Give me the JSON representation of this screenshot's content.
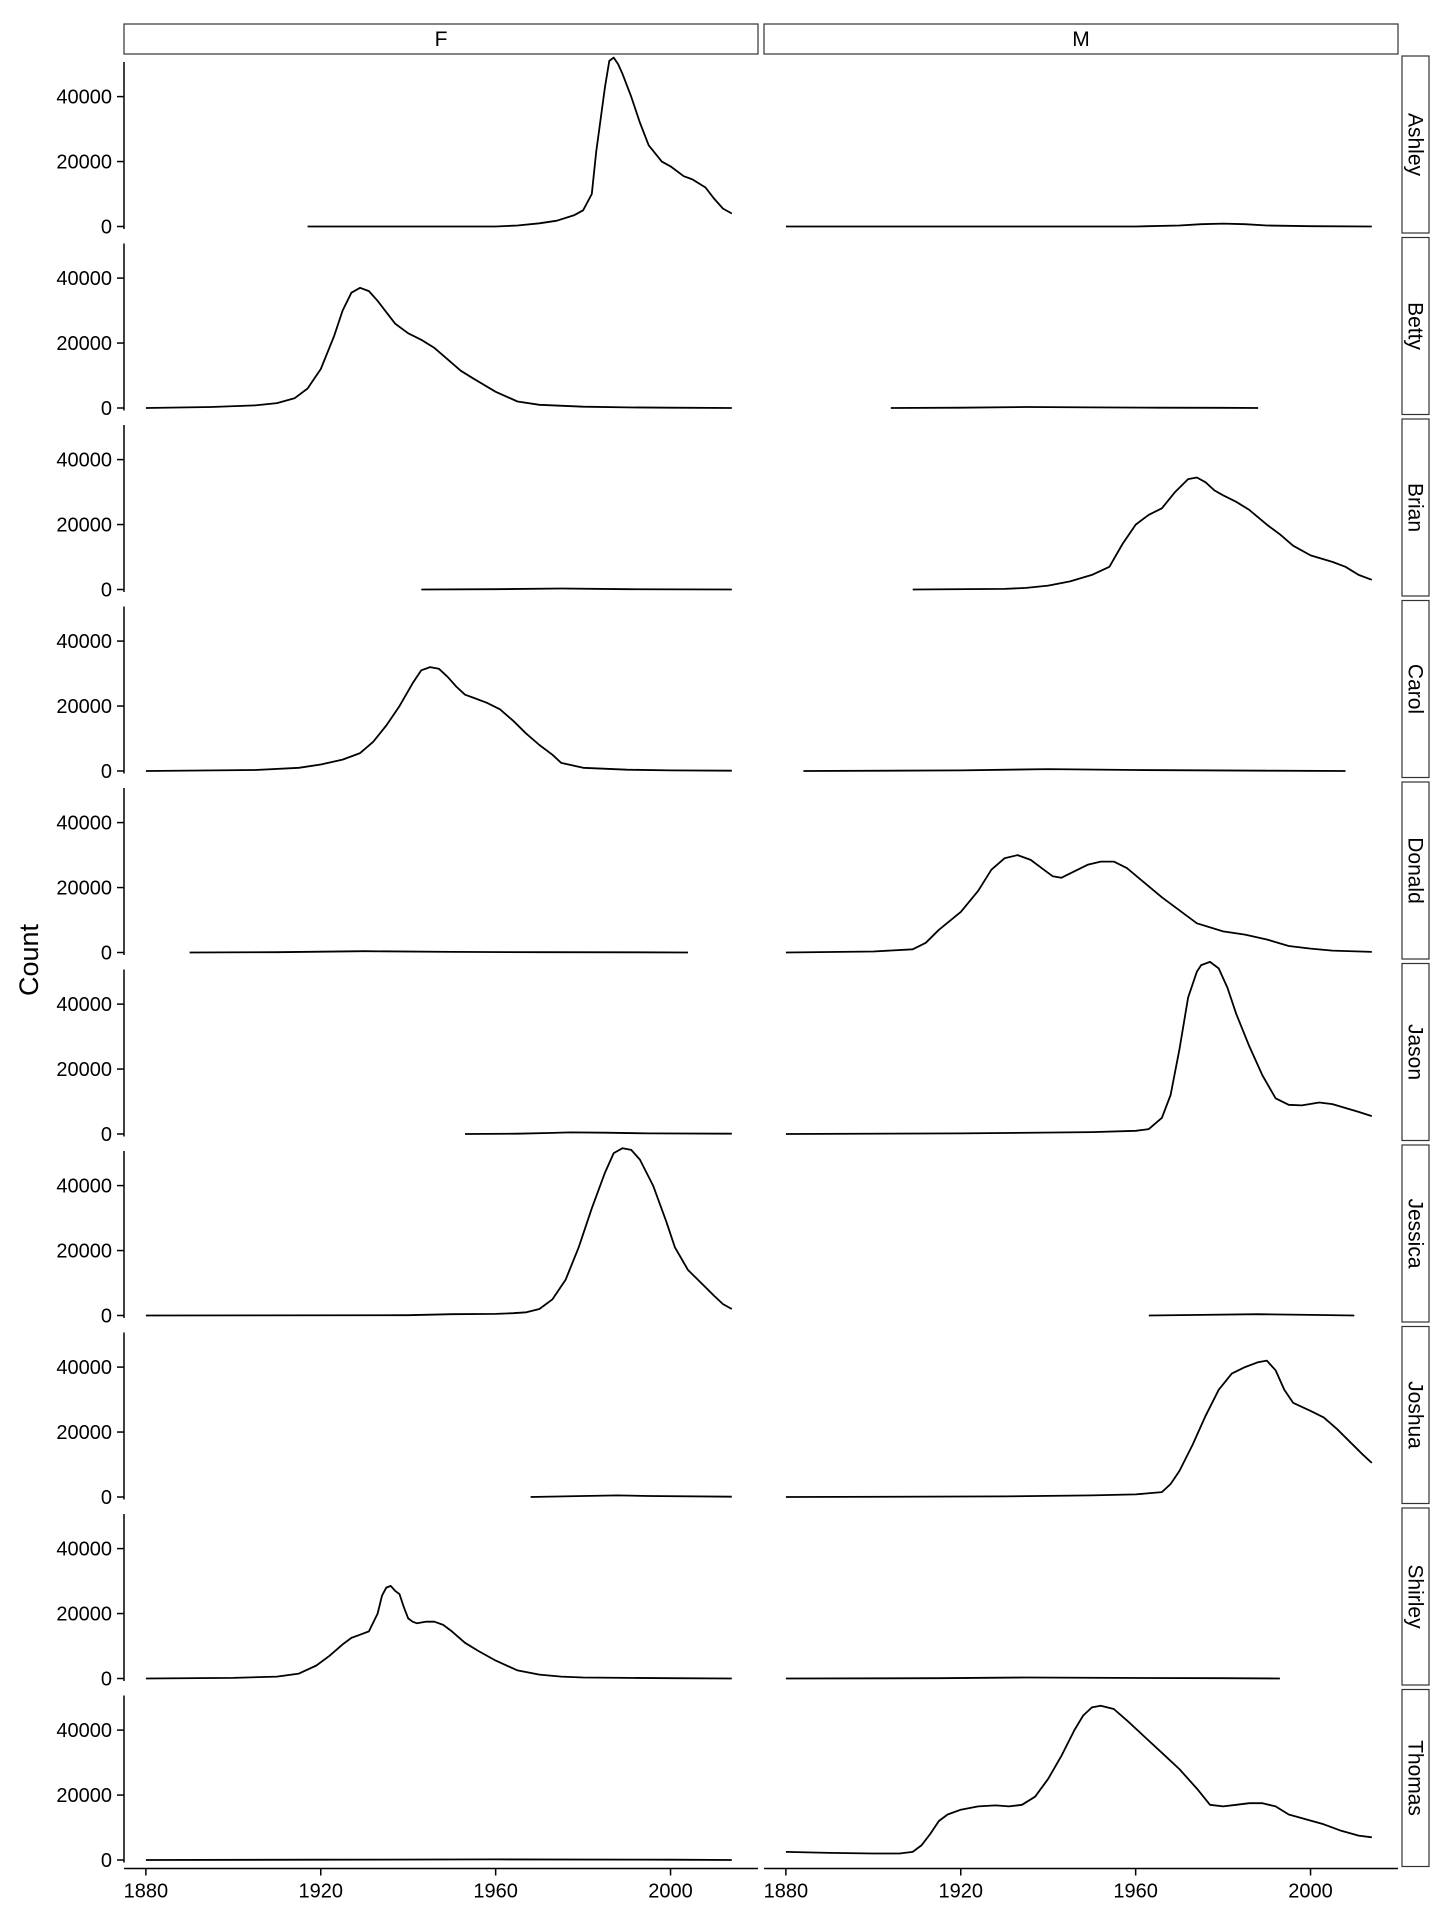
{
  "chart_data": {
    "type": "line",
    "ylabel": "Count",
    "xlabel": "",
    "xlim": [
      1875,
      2020
    ],
    "ylim": [
      -2000,
      52500
    ],
    "x_ticks": [
      1880,
      1920,
      1960,
      2000
    ],
    "y_ticks": [
      0,
      20000,
      40000
    ],
    "grid": false,
    "colors": {
      "line": "#000000",
      "strip_fill": "#ffffff",
      "strip_border": "#333333"
    },
    "col_facets": [
      "F",
      "M"
    ],
    "row_facets": [
      "Ashley",
      "Betty",
      "Brian",
      "Carol",
      "Donald",
      "Jason",
      "Jessica",
      "Joshua",
      "Shirley",
      "Thomas"
    ],
    "panels": [
      {
        "name": "Ashley",
        "sex": "F",
        "x": [
          1917,
          1960,
          1965,
          1970,
          1974,
          1978,
          1980,
          1982,
          1983,
          1985,
          1986,
          1987,
          1988,
          1989,
          1991,
          1993,
          1995,
          1998,
          2000,
          2003,
          2005,
          2008,
          2010,
          2012,
          2014
        ],
        "y": [
          0,
          0,
          300,
          1000,
          1800,
          3500,
          5000,
          10000,
          23000,
          43000,
          51000,
          52000,
          50000,
          47000,
          40000,
          32000,
          25000,
          20000,
          18500,
          15500,
          14500,
          12000,
          8500,
          5500,
          4000
        ]
      },
      {
        "name": "Ashley",
        "sex": "M",
        "x": [
          1880,
          1960,
          1970,
          1975,
          1980,
          1985,
          1990,
          2000,
          2014
        ],
        "y": [
          0,
          0,
          300,
          700,
          900,
          700,
          300,
          100,
          0
        ]
      },
      {
        "name": "Betty",
        "sex": "F",
        "x": [
          1880,
          1895,
          1905,
          1910,
          1914,
          1917,
          1920,
          1923,
          1925,
          1927,
          1929,
          1931,
          1933,
          1935,
          1937,
          1940,
          1943,
          1946,
          1949,
          1952,
          1955,
          1960,
          1965,
          1970,
          1980,
          1990,
          2000,
          2014
        ],
        "y": [
          0,
          300,
          800,
          1500,
          3000,
          6000,
          12000,
          22000,
          30000,
          35500,
          37000,
          36000,
          33000,
          29500,
          26000,
          23000,
          21000,
          18500,
          15000,
          11500,
          9000,
          5000,
          2000,
          1000,
          400,
          200,
          100,
          0
        ]
      },
      {
        "name": "Betty",
        "sex": "M",
        "x": [
          1904,
          1920,
          1935,
          1950,
          1965,
          1980,
          1988
        ],
        "y": [
          0,
          100,
          300,
          200,
          100,
          50,
          0
        ]
      },
      {
        "name": "Brian",
        "sex": "F",
        "x": [
          1943,
          1960,
          1975,
          1990,
          2014
        ],
        "y": [
          0,
          100,
          300,
          100,
          0
        ]
      },
      {
        "name": "Brian",
        "sex": "M",
        "x": [
          1909,
          1930,
          1935,
          1940,
          1945,
          1950,
          1954,
          1957,
          1960,
          1963,
          1966,
          1969,
          1972,
          1974,
          1976,
          1978,
          1980,
          1983,
          1986,
          1990,
          1993,
          1996,
          2000,
          2005,
          2008,
          2011,
          2014
        ],
        "y": [
          0,
          200,
          500,
          1200,
          2500,
          4500,
          7000,
          14000,
          20000,
          23000,
          25000,
          30000,
          34000,
          34500,
          33000,
          30500,
          29000,
          27000,
          24500,
          20000,
          17000,
          13500,
          10500,
          8500,
          7000,
          4500,
          3000
        ]
      },
      {
        "name": "Carol",
        "sex": "F",
        "x": [
          1880,
          1905,
          1915,
          1920,
          1925,
          1929,
          1932,
          1935,
          1938,
          1941,
          1943,
          1945,
          1947,
          1949,
          1951,
          1953,
          1955,
          1958,
          1961,
          1964,
          1967,
          1970,
          1973,
          1975,
          1980,
          1990,
          2000,
          2014
        ],
        "y": [
          0,
          300,
          1000,
          2000,
          3500,
          5500,
          9000,
          14000,
          20000,
          27000,
          31000,
          32000,
          31500,
          29000,
          26000,
          23500,
          22500,
          21000,
          19000,
          15500,
          11500,
          8000,
          5000,
          2500,
          1000,
          400,
          200,
          100
        ]
      },
      {
        "name": "Carol",
        "sex": "M",
        "x": [
          1884,
          1920,
          1940,
          1960,
          1990,
          2008
        ],
        "y": [
          0,
          200,
          600,
          300,
          100,
          0
        ]
      },
      {
        "name": "Donald",
        "sex": "F",
        "x": [
          1890,
          1910,
          1930,
          1950,
          1970,
          1990,
          2004
        ],
        "y": [
          0,
          100,
          400,
          200,
          100,
          50,
          0
        ]
      },
      {
        "name": "Donald",
        "sex": "M",
        "x": [
          1880,
          1900,
          1909,
          1912,
          1915,
          1920,
          1924,
          1927,
          1930,
          1933,
          1936,
          1939,
          1941,
          1943,
          1946,
          1949,
          1952,
          1955,
          1958,
          1962,
          1966,
          1970,
          1974,
          1980,
          1985,
          1990,
          1995,
          2000,
          2005,
          2014
        ],
        "y": [
          0,
          300,
          1000,
          3000,
          7000,
          12500,
          19000,
          25500,
          29000,
          30000,
          28500,
          25500,
          23500,
          23000,
          25000,
          27000,
          28000,
          28000,
          26000,
          21500,
          17000,
          13000,
          9000,
          6500,
          5500,
          4000,
          2000,
          1200,
          600,
          200
        ]
      },
      {
        "name": "Jason",
        "sex": "F",
        "x": [
          1953,
          1965,
          1972,
          1977,
          1985,
          1995,
          2014
        ],
        "y": [
          0,
          100,
          300,
          500,
          400,
          200,
          100
        ]
      },
      {
        "name": "Jason",
        "sex": "M",
        "x": [
          1880,
          1920,
          1950,
          1960,
          1963,
          1966,
          1968,
          1970,
          1972,
          1974,
          1975,
          1977,
          1979,
          1981,
          1983,
          1986,
          1989,
          1992,
          1995,
          1998,
          2002,
          2005,
          2008,
          2011,
          2014
        ],
        "y": [
          0,
          200,
          600,
          1000,
          1500,
          5000,
          12000,
          26000,
          42000,
          50000,
          52000,
          53000,
          51000,
          45000,
          37000,
          27000,
          18000,
          11000,
          9000,
          8800,
          9700,
          9200,
          8000,
          6800,
          5500
        ]
      },
      {
        "name": "Jessica",
        "sex": "F",
        "x": [
          1880,
          1940,
          1950,
          1960,
          1964,
          1967,
          1970,
          1973,
          1976,
          1979,
          1982,
          1985,
          1987,
          1989,
          1991,
          1993,
          1996,
          1999,
          2001,
          2004,
          2007,
          2010,
          2012,
          2014
        ],
        "y": [
          0,
          100,
          400,
          500,
          700,
          1000,
          2000,
          5000,
          11000,
          21000,
          33000,
          44000,
          50000,
          51500,
          51000,
          48000,
          40000,
          29000,
          21000,
          14000,
          10000,
          6000,
          3500,
          2000
        ]
      },
      {
        "name": "Jessica",
        "sex": "M",
        "x": [
          1963,
          1975,
          1988,
          2000,
          2010
        ],
        "y": [
          0,
          200,
          400,
          200,
          0
        ]
      },
      {
        "name": "Joshua",
        "sex": "F",
        "x": [
          1968,
          1980,
          1988,
          1995,
          2014
        ],
        "y": [
          0,
          300,
          500,
          300,
          100
        ]
      },
      {
        "name": "Joshua",
        "sex": "M",
        "x": [
          1880,
          1930,
          1950,
          1960,
          1966,
          1968,
          1970,
          1973,
          1976,
          1979,
          1982,
          1985,
          1988,
          1990,
          1992,
          1994,
          1996,
          2000,
          2003,
          2006,
          2009,
          2012,
          2014
        ],
        "y": [
          0,
          200,
          500,
          800,
          1500,
          4000,
          8000,
          16000,
          25000,
          33000,
          38000,
          40000,
          41500,
          42000,
          39000,
          33000,
          29000,
          26500,
          24500,
          21000,
          17000,
          13000,
          10500
        ]
      },
      {
        "name": "Shirley",
        "sex": "F",
        "x": [
          1880,
          1900,
          1910,
          1915,
          1919,
          1922,
          1925,
          1927,
          1929,
          1931,
          1933,
          1934,
          1935,
          1936,
          1937,
          1938,
          1939,
          1940,
          1941,
          1942,
          1944,
          1946,
          1948,
          1950,
          1953,
          1956,
          1960,
          1965,
          1970,
          1975,
          1980,
          1990,
          2000,
          2014
        ],
        "y": [
          0,
          200,
          600,
          1500,
          4000,
          7000,
          10500,
          12500,
          13500,
          14500,
          20000,
          25500,
          28000,
          28500,
          27000,
          26000,
          22000,
          18500,
          17500,
          17000,
          17500,
          17500,
          16500,
          14500,
          11000,
          8500,
          5500,
          2500,
          1200,
          600,
          300,
          200,
          100,
          0
        ]
      },
      {
        "name": "Shirley",
        "sex": "M",
        "x": [
          1880,
          1915,
          1935,
          1955,
          1980,
          1993
        ],
        "y": [
          0,
          100,
          300,
          200,
          100,
          0
        ]
      },
      {
        "name": "Thomas",
        "sex": "F",
        "x": [
          1880,
          1920,
          1960,
          2000,
          2014
        ],
        "y": [
          0,
          100,
          200,
          100,
          0
        ]
      },
      {
        "name": "Thomas",
        "sex": "M",
        "x": [
          1880,
          1890,
          1900,
          1906,
          1909,
          1911,
          1913,
          1915,
          1917,
          1920,
          1924,
          1928,
          1931,
          1934,
          1937,
          1940,
          1943,
          1946,
          1948,
          1950,
          1952,
          1955,
          1958,
          1962,
          1966,
          1970,
          1974,
          1977,
          1980,
          1983,
          1986,
          1989,
          1992,
          1995,
          1999,
          2003,
          2007,
          2011,
          2014
        ],
        "y": [
          2500,
          2200,
          2000,
          2000,
          2500,
          4500,
          8000,
          12000,
          14000,
          15500,
          16500,
          16800,
          16500,
          17000,
          19500,
          25000,
          32000,
          40000,
          44500,
          47000,
          47500,
          46500,
          43000,
          38000,
          33000,
          28000,
          22000,
          17000,
          16500,
          17000,
          17500,
          17500,
          16500,
          14000,
          12500,
          11000,
          9000,
          7500,
          7000
        ]
      }
    ]
  }
}
